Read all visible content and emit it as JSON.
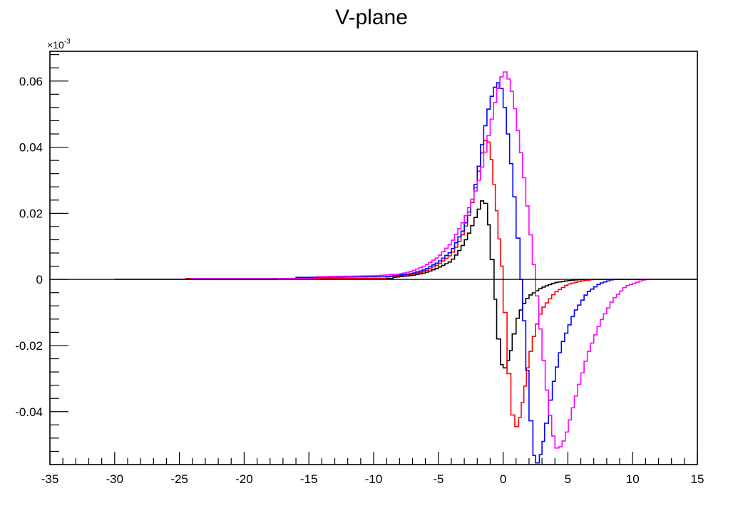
{
  "chart_data": {
    "type": "line",
    "title": "V-plane",
    "xlabel": "",
    "ylabel": "",
    "y_exponent_label": "×10",
    "y_exponent_power": "-3",
    "xlim": [
      -35,
      15
    ],
    "ylim": [
      -0.056,
      0.069
    ],
    "x_ticks": [
      -35,
      -30,
      -25,
      -20,
      -15,
      -10,
      -5,
      0,
      5,
      10,
      15
    ],
    "x_tick_labels": [
      "-35",
      "-30",
      "-25",
      "-20",
      "-15",
      "-10",
      "-5",
      "0",
      "5",
      "10",
      "15"
    ],
    "y_ticks": [
      -0.04,
      -0.02,
      0,
      0.02,
      0.04,
      0.06
    ],
    "y_tick_labels": [
      "-0.04",
      "-0.02",
      "0",
      "0.02",
      "0.04",
      "0.06"
    ],
    "grid": false,
    "legend": "none",
    "series": [
      {
        "color": "#000000",
        "points": [
          [
            -30,
            0
          ],
          [
            -17.5,
            0
          ],
          [
            -17.5,
            0.0003
          ],
          [
            -8.5,
            0.0003
          ],
          [
            -8.5,
            0.0006
          ],
          [
            -7,
            0.0012
          ],
          [
            -6,
            0.002
          ],
          [
            -5,
            0.0035
          ],
          [
            -4,
            0.0055
          ],
          [
            -3.5,
            0.008
          ],
          [
            -3,
            0.011
          ],
          [
            -2.5,
            0.015
          ],
          [
            -2,
            0.02
          ],
          [
            -1.5,
            0.025
          ],
          [
            -1.2,
            0.021
          ],
          [
            -1,
            0.012
          ],
          [
            -0.7,
            0
          ],
          [
            -0.5,
            -0.012
          ],
          [
            -0.2,
            -0.024
          ],
          [
            0,
            -0.0275
          ],
          [
            0.3,
            -0.026
          ],
          [
            0.7,
            -0.02
          ],
          [
            1,
            -0.013
          ],
          [
            1.5,
            -0.008
          ],
          [
            2,
            -0.005
          ],
          [
            3,
            -0.0025
          ],
          [
            4,
            -0.001
          ],
          [
            5,
            -0.0004
          ],
          [
            6,
            0
          ],
          [
            15,
            0
          ]
        ]
      },
      {
        "color": "#ff0000",
        "points": [
          [
            -30,
            0
          ],
          [
            -24.5,
            0
          ],
          [
            -24.5,
            0.0003
          ],
          [
            -9,
            0.0003
          ],
          [
            -9,
            0.0007
          ],
          [
            -7,
            0.0015
          ],
          [
            -6,
            0.0025
          ],
          [
            -5,
            0.0045
          ],
          [
            -4,
            0.0075
          ],
          [
            -3.5,
            0.0105
          ],
          [
            -3,
            0.0145
          ],
          [
            -2.5,
            0.021
          ],
          [
            -2,
            0.03
          ],
          [
            -1.5,
            0.041
          ],
          [
            -1.2,
            0.043
          ],
          [
            -1,
            0.04
          ],
          [
            -0.6,
            0.025
          ],
          [
            -0.2,
            0.008
          ],
          [
            0,
            0
          ],
          [
            0.3,
            -0.02
          ],
          [
            0.6,
            -0.037
          ],
          [
            0.9,
            -0.045
          ],
          [
            1.2,
            -0.044
          ],
          [
            1.6,
            -0.035
          ],
          [
            2,
            -0.024
          ],
          [
            2.5,
            -0.015
          ],
          [
            3,
            -0.009
          ],
          [
            4,
            -0.004
          ],
          [
            5,
            -0.0015
          ],
          [
            6,
            -0.0005
          ],
          [
            7,
            0
          ],
          [
            15,
            0
          ]
        ]
      },
      {
        "color": "#0000ff",
        "points": [
          [
            -30,
            0
          ],
          [
            -24,
            0
          ],
          [
            -24,
            0.0003
          ],
          [
            -16,
            0.0003
          ],
          [
            -16,
            0.0006
          ],
          [
            -9,
            0.0008
          ],
          [
            -7,
            0.0018
          ],
          [
            -6,
            0.003
          ],
          [
            -5,
            0.0052
          ],
          [
            -4,
            0.0085
          ],
          [
            -3,
            0.0155
          ],
          [
            -2.5,
            0.022
          ],
          [
            -2,
            0.031
          ],
          [
            -1.5,
            0.044
          ],
          [
            -1,
            0.054
          ],
          [
            -0.5,
            0.0595
          ],
          [
            -0.3,
            0.0595
          ],
          [
            0,
            0.056
          ],
          [
            0.5,
            0.04
          ],
          [
            1,
            0.02
          ],
          [
            1.3,
            0.005
          ],
          [
            1.5,
            -0.005
          ],
          [
            2,
            -0.035
          ],
          [
            2.3,
            -0.0505
          ],
          [
            2.5,
            -0.056
          ],
          [
            2.8,
            -0.055
          ],
          [
            3.2,
            -0.047
          ],
          [
            3.8,
            -0.033
          ],
          [
            4.5,
            -0.02
          ],
          [
            5.5,
            -0.01
          ],
          [
            6.5,
            -0.004
          ],
          [
            7.5,
            -0.0012
          ],
          [
            8.5,
            0
          ],
          [
            15,
            0
          ]
        ]
      },
      {
        "color": "#ff00ff",
        "points": [
          [
            -30,
            0
          ],
          [
            -24,
            0
          ],
          [
            -24,
            0.0003
          ],
          [
            -14.5,
            0.0003
          ],
          [
            -14.5,
            0.0008
          ],
          [
            -10,
            0.0011
          ],
          [
            -8,
            0.0016
          ],
          [
            -7,
            0.0025
          ],
          [
            -6,
            0.0042
          ],
          [
            -5,
            0.0068
          ],
          [
            -4,
            0.011
          ],
          [
            -3,
            0.018
          ],
          [
            -2,
            0.028
          ],
          [
            -1.5,
            0.036
          ],
          [
            -1,
            0.046
          ],
          [
            -0.5,
            0.056
          ],
          [
            0,
            0.063
          ],
          [
            0.3,
            0.0625
          ],
          [
            0.8,
            0.055
          ],
          [
            1.5,
            0.035
          ],
          [
            2,
            0.018
          ],
          [
            2.5,
            0
          ],
          [
            3,
            -0.02
          ],
          [
            3.5,
            -0.038
          ],
          [
            4,
            -0.0505
          ],
          [
            4.3,
            -0.0515
          ],
          [
            4.8,
            -0.048
          ],
          [
            5.5,
            -0.037
          ],
          [
            6.5,
            -0.023
          ],
          [
            7.5,
            -0.013
          ],
          [
            8.5,
            -0.006
          ],
          [
            9.5,
            -0.002
          ],
          [
            11,
            0
          ],
          [
            15,
            0
          ]
        ]
      }
    ]
  }
}
